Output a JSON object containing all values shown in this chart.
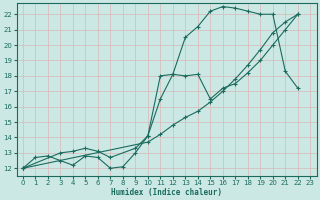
{
  "xlabel": "Humidex (Indice chaleur)",
  "bg_color": "#cce8e4",
  "grid_color": "#b0d4d0",
  "line_color": "#1a6b5e",
  "xlim": [
    -0.5,
    23.5
  ],
  "ylim": [
    11.5,
    22.7
  ],
  "xticks": [
    0,
    1,
    2,
    3,
    4,
    5,
    6,
    7,
    8,
    9,
    10,
    11,
    12,
    13,
    14,
    15,
    16,
    17,
    18,
    19,
    20,
    21,
    22,
    23
  ],
  "yticks": [
    12,
    13,
    14,
    15,
    16,
    17,
    18,
    19,
    20,
    21,
    22
  ],
  "line1_x": [
    0,
    1,
    2,
    3,
    4,
    5,
    6,
    7,
    8,
    9,
    10,
    11,
    12,
    13,
    14,
    15,
    16,
    17,
    18,
    19,
    20,
    21,
    22
  ],
  "line1_y": [
    12,
    12.7,
    12.8,
    12.5,
    12.2,
    12.8,
    12.7,
    12.0,
    12.1,
    13.0,
    14.1,
    18.0,
    18.1,
    20.5,
    21.2,
    22.2,
    22.5,
    22.4,
    22.2,
    22.0,
    22.0,
    18.3,
    17.2
  ],
  "line2_x": [
    0,
    3,
    4,
    5,
    6,
    7,
    9,
    10,
    11,
    12,
    13,
    14,
    15,
    16,
    17,
    18,
    19,
    20,
    21,
    22
  ],
  "line2_y": [
    12,
    13.0,
    13.1,
    13.3,
    13.1,
    12.7,
    13.3,
    14.1,
    16.5,
    18.1,
    18.0,
    18.1,
    16.5,
    17.2,
    17.5,
    18.2,
    19.0,
    20.0,
    21.0,
    22.0
  ],
  "line3_x": [
    0,
    10,
    11,
    12,
    13,
    14,
    15,
    16,
    17,
    18,
    19,
    20,
    21,
    22
  ],
  "line3_y": [
    12,
    13.7,
    14.2,
    14.8,
    15.3,
    15.7,
    16.3,
    17.0,
    17.8,
    18.7,
    19.7,
    20.8,
    21.5,
    22.0
  ]
}
